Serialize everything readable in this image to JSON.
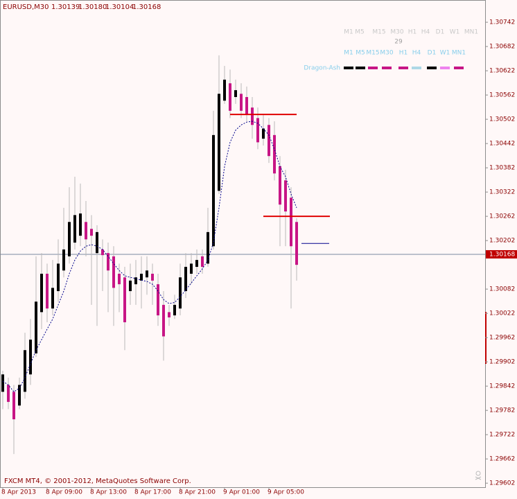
{
  "chart_data": {
    "type": "candlestick",
    "title": "EURUSD,M30",
    "title_ohlc": [
      "1.30139",
      "1.30180",
      "1.30104",
      "1.30168"
    ],
    "footer": "FXCM MT4, © 2001-2012, MetaQuotes Software Corp.",
    "categories": [
      "8 Apr 2013",
      null,
      null,
      null,
      null,
      null,
      null,
      null,
      "8 Apr 09:00",
      null,
      null,
      null,
      null,
      null,
      null,
      null,
      "8 Apr 13:00",
      null,
      null,
      null,
      null,
      null,
      null,
      null,
      "8 Apr 17:00",
      null,
      null,
      null,
      null,
      null,
      null,
      null,
      "8 Apr 21:00",
      null,
      null,
      null,
      null,
      null,
      null,
      null,
      "9 Apr 01:00",
      null,
      null,
      null,
      null,
      null,
      null,
      null,
      "9 Apr 05:00",
      null,
      null,
      null,
      null,
      null
    ],
    "open": [
      1.29828,
      1.29845,
      1.29828,
      1.29794,
      1.29828,
      1.29871,
      1.29923,
      1.30025,
      1.3012,
      1.30034,
      1.30077,
      1.30128,
      1.30163,
      1.30197,
      1.30214,
      1.30248,
      1.30231,
      1.30171,
      1.3018,
      1.30171,
      1.30163,
      1.3012,
      1.30111,
      1.30077,
      1.30094,
      1.30103,
      1.30111,
      1.3012,
      1.30094,
      1.30043,
      1.30025,
      1.30017,
      1.30034,
      1.30077,
      1.3012,
      1.30137,
      1.30163,
      1.30145,
      1.30188,
      1.30325,
      1.30548,
      1.30591,
      1.30557,
      1.30565,
      1.30557,
      1.30531,
      1.30505,
      1.30454,
      1.30488,
      1.30463,
      1.30386,
      1.30351,
      1.30308,
      1.30248
    ],
    "high": [
      1.2988,
      1.29863,
      1.29845,
      1.29863,
      1.29974,
      1.30008,
      1.30163,
      1.30171,
      1.30145,
      1.30154,
      1.30205,
      1.30283,
      1.30334,
      1.3036,
      1.30343,
      1.303,
      1.30265,
      1.3024,
      1.30205,
      1.30197,
      1.30188,
      1.30145,
      1.30137,
      1.30145,
      1.30154,
      1.30163,
      1.30163,
      1.30145,
      1.3012,
      1.30077,
      1.30043,
      1.30068,
      1.30145,
      1.30171,
      1.30171,
      1.3018,
      1.3018,
      1.30283,
      1.30523,
      1.3066,
      1.30634,
      1.30625,
      1.306,
      1.30591,
      1.30583,
      1.30557,
      1.30531,
      1.30514,
      1.30505,
      1.30497,
      1.30411,
      1.30377,
      1.30334,
      1.30257
    ],
    "low": [
      1.29785,
      1.29785,
      1.29674,
      1.29785,
      1.29811,
      1.29845,
      1.29914,
      1.29983,
      1.3,
      1.30017,
      1.30051,
      1.30111,
      1.30145,
      1.3018,
      1.30188,
      1.30163,
      1.30043,
      1.29991,
      1.30077,
      1.30025,
      1.29991,
      1.30025,
      1.29931,
      1.30043,
      1.30043,
      1.30034,
      1.30068,
      1.30043,
      1.29991,
      1.29905,
      1.29991,
      1.30008,
      1.30017,
      1.3006,
      1.30094,
      1.3012,
      1.3012,
      1.30137,
      1.3018,
      1.30317,
      1.3054,
      1.30505,
      1.3054,
      1.30505,
      1.30497,
      1.30454,
      1.30428,
      1.30437,
      1.30394,
      1.30351,
      1.30188,
      1.30188,
      1.30034,
      1.30103
    ],
    "close": [
      1.29871,
      1.29803,
      1.2976,
      1.29845,
      1.29931,
      1.29957,
      1.30051,
      1.3012,
      1.30034,
      1.30085,
      1.30145,
      1.3018,
      1.30248,
      1.30265,
      1.30269,
      1.30205,
      1.30214,
      1.30223,
      1.30166,
      1.30128,
      1.30085,
      1.30094,
      1.3,
      1.30103,
      1.30111,
      1.3012,
      1.30128,
      1.30103,
      1.30017,
      1.29965,
      1.30012,
      1.30043,
      1.30111,
      1.30137,
      1.30145,
      1.30154,
      1.30137,
      1.30223,
      1.30463,
      1.30565,
      1.306,
      1.30523,
      1.30574,
      1.30523,
      1.30514,
      1.30488,
      1.30445,
      1.30479,
      1.30411,
      1.30368,
      1.30291,
      1.30274,
      1.30188,
      1.30142
    ],
    "up_color": "#000000",
    "down_color": "#c71585",
    "wick_color": "#b8b8b8",
    "ma": {
      "color": "#00008b",
      "values": [
        1.29854,
        1.29845,
        1.29828,
        1.29837,
        1.29863,
        1.29897,
        1.29931,
        1.29957,
        1.29983,
        1.30008,
        1.30043,
        1.30077,
        1.3012,
        1.30154,
        1.30176,
        1.30188,
        1.30192,
        1.30188,
        1.3018,
        1.30163,
        1.30145,
        1.30128,
        1.30115,
        1.30111,
        1.30108,
        1.30104,
        1.30101,
        1.30094,
        1.30077,
        1.30056,
        1.30046,
        1.30049,
        1.30063,
        1.3008,
        1.30097,
        1.30115,
        1.30132,
        1.30154,
        1.30197,
        1.30283,
        1.30385,
        1.30445,
        1.30475,
        1.30488,
        1.30495,
        1.30497,
        1.30492,
        1.30479,
        1.30463,
        1.30428,
        1.30385,
        1.3036,
        1.30317,
        1.30283
      ]
    },
    "levels": [
      {
        "value": 1.30514,
        "color": "#e00000"
      },
      {
        "value": 1.30262,
        "color": "#e00000"
      },
      {
        "value": 1.30195,
        "color": "#00008b"
      }
    ],
    "current_price": 1.30168,
    "ylim": [
      1.29592,
      1.30797
    ],
    "yticks": [
      1.30742,
      1.30682,
      1.30622,
      1.30562,
      1.30502,
      1.30442,
      1.30382,
      1.30322,
      1.30262,
      1.30202,
      1.30082,
      1.30022,
      1.29962,
      1.29902,
      1.29842,
      1.29782,
      1.29722,
      1.29662,
      1.29602
    ],
    "panel": {
      "timeframes": [
        "M1",
        "M5",
        "M15",
        "M30",
        "H1",
        "H4",
        "D1",
        "W1",
        "MN1"
      ],
      "count": 29,
      "timeframes2": [
        "M1",
        "M5",
        "M15",
        "M30",
        "H1",
        "H4",
        "D1",
        "W1",
        "MN1"
      ],
      "indicator": "Dragon-Ash",
      "dash_colors": [
        "#000000",
        "#000000",
        "#c71585",
        "#c71585",
        "#c71585",
        "#add8e6",
        "#000000",
        "#ee82ee",
        "#c71585"
      ]
    }
  }
}
